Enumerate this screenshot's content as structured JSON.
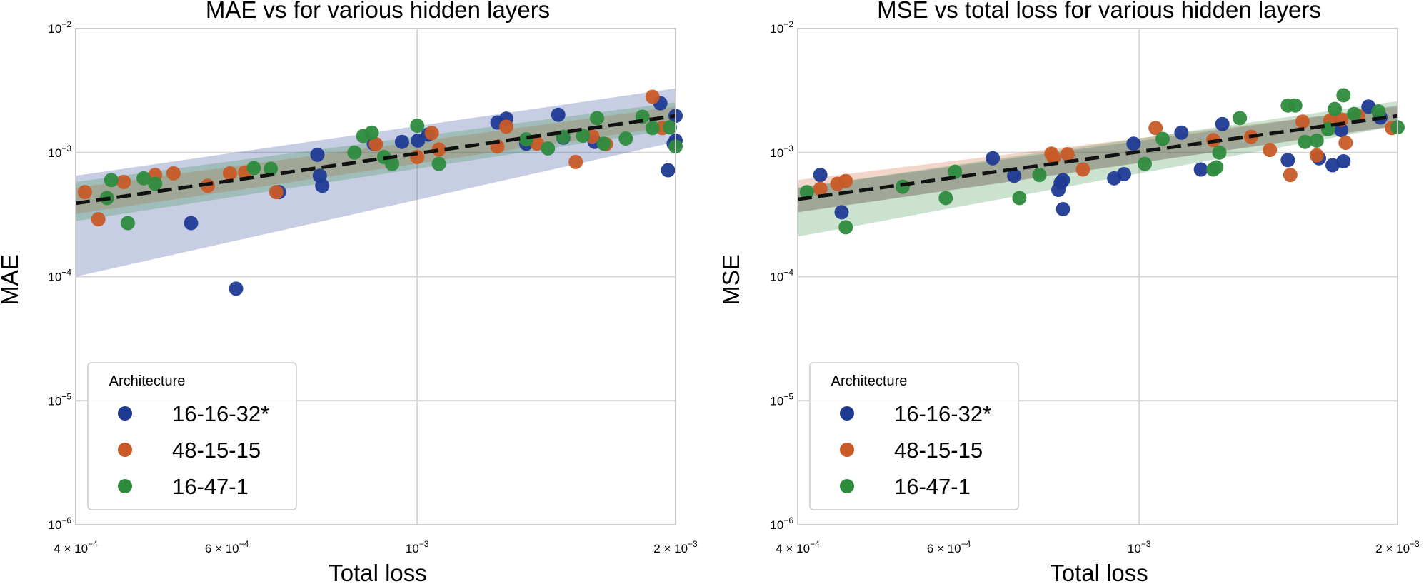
{
  "colors": {
    "16-16-32*": "#1f3a93",
    "48-15-15": "#c85a27",
    "16-47-1": "#2e8b3e",
    "fit_line": "#111111",
    "grid": "#d4d4d4",
    "frame": "#cccccc"
  },
  "chart_data": [
    {
      "type": "scatter",
      "title": "MAE vs for various hidden layers",
      "xlabel": "Total loss",
      "ylabel": "MAE",
      "xscale": "log",
      "yscale": "log",
      "xlim": [
        0.0004,
        0.002
      ],
      "ylim": [
        1e-06,
        0.01
      ],
      "xticks": [
        {
          "value": 0.0004,
          "mant": "4",
          "exp": "−4"
        },
        {
          "value": 0.0006,
          "mant": "6",
          "exp": "−4"
        },
        {
          "value": 0.001,
          "mant": "",
          "exp": "−3"
        },
        {
          "value": 0.002,
          "mant": "2",
          "exp": "−3"
        }
      ],
      "yticks": [
        {
          "value": 1e-06,
          "exp": "−6"
        },
        {
          "value": 1e-05,
          "exp": "−5"
        },
        {
          "value": 0.0001,
          "exp": "−4"
        },
        {
          "value": 0.001,
          "exp": "−3"
        },
        {
          "value": 0.01,
          "exp": "−2"
        }
      ],
      "legend": {
        "title": "Architecture",
        "location": "lower-left"
      },
      "fit": {
        "x": [
          0.0004,
          0.002
        ],
        "y": [
          0.00039,
          0.00198
        ]
      },
      "bands": [
        {
          "name": "16-16-32*",
          "lower": [
            0.0001,
            0.00122
          ],
          "upper": [
            0.00065,
            0.0033
          ]
        },
        {
          "name": "48-15-15",
          "lower": [
            0.00032,
            0.00165
          ],
          "upper": [
            0.00052,
            0.00235
          ]
        },
        {
          "name": "16-47-1",
          "lower": [
            0.00028,
            0.00155
          ],
          "upper": [
            0.00058,
            0.00255
          ]
        }
      ],
      "series": [
        {
          "name": "16-16-32*",
          "x": [
            0.000545,
            0.000615,
            0.00069,
            0.00077,
            0.000765,
            0.000775,
            0.00089,
            0.00096,
            0.001002,
            0.00103,
            0.00124,
            0.00127,
            0.00134,
            0.00146,
            0.00148,
            0.00161,
            0.00192,
            0.00196,
            0.002,
            0.002,
            0.00199
          ],
          "y": [
            0.00027,
            8e-05,
            0.00048,
            0.00065,
            0.00096,
            0.00054,
            0.00118,
            0.00122,
            0.00125,
            0.0014,
            0.00175,
            0.00188,
            0.00118,
            0.00202,
            0.00132,
            0.00122,
            0.0025,
            0.00072,
            0.00198,
            0.00125,
            0.00118
          ]
        },
        {
          "name": "48-15-15",
          "x": [
            0.00041,
            0.000425,
            0.000455,
            0.000495,
            0.00052,
            0.00057,
            0.000605,
            0.00063,
            0.000685,
            0.000895,
            0.001,
            0.00104,
            0.00106,
            0.00124,
            0.00127,
            0.00138,
            0.00153,
            0.0016,
            0.00166,
            0.00188,
            0.00193
          ],
          "y": [
            0.00048,
            0.00029,
            0.00058,
            0.00066,
            0.00068,
            0.00054,
            0.00068,
            0.00069,
            0.00048,
            0.00117,
            0.00092,
            0.00144,
            0.00106,
            0.00112,
            0.00162,
            0.00118,
            0.00084,
            0.00135,
            0.00117,
            0.00282,
            0.00158
          ]
        },
        {
          "name": "16-47-1",
          "x": [
            0.000435,
            0.00044,
            0.00046,
            0.00048,
            0.000495,
            0.000645,
            0.000675,
            0.000845,
            0.000865,
            0.000885,
            0.000915,
            0.000935,
            0.001,
            0.00106,
            0.00134,
            0.00142,
            0.00148,
            0.00156,
            0.00162,
            0.00165,
            0.00175,
            0.00183,
            0.00188,
            0.00197,
            0.002
          ],
          "y": [
            0.00043,
            0.0006,
            0.00027,
            0.00062,
            0.00056,
            0.00075,
            0.00074,
            0.001,
            0.00136,
            0.00145,
            0.00092,
            0.00081,
            0.00165,
            0.00081,
            0.00128,
            0.00108,
            0.00134,
            0.00137,
            0.0019,
            0.00118,
            0.0013,
            0.00195,
            0.00158,
            0.0016,
            0.00112
          ]
        }
      ]
    },
    {
      "type": "scatter",
      "title": "MSE vs total loss for various hidden layers",
      "xlabel": "Total loss",
      "ylabel": "MSE",
      "xscale": "log",
      "yscale": "log",
      "xlim": [
        0.0004,
        0.002
      ],
      "ylim": [
        1e-06,
        0.01
      ],
      "xticks": [
        {
          "value": 0.0004,
          "mant": "4",
          "exp": "−4"
        },
        {
          "value": 0.0006,
          "mant": "6",
          "exp": "−4"
        },
        {
          "value": 0.001,
          "mant": "",
          "exp": "−3"
        },
        {
          "value": 0.002,
          "mant": "2",
          "exp": "−3"
        }
      ],
      "yticks": [
        {
          "value": 1e-06,
          "exp": "−6"
        },
        {
          "value": 1e-05,
          "exp": "−5"
        },
        {
          "value": 0.0001,
          "exp": "−4"
        },
        {
          "value": 0.001,
          "exp": "−3"
        },
        {
          "value": 0.01,
          "exp": "−2"
        }
      ],
      "legend": {
        "title": "Architecture",
        "location": "lower-left"
      },
      "fit": {
        "x": [
          0.0004,
          0.002
        ],
        "y": [
          0.00042,
          0.00198
        ]
      },
      "bands": [
        {
          "name": "16-16-32*",
          "lower": [
            0.00033,
            0.00165
          ],
          "upper": [
            0.00052,
            0.0024
          ]
        },
        {
          "name": "48-15-15",
          "lower": [
            0.00033,
            0.00165
          ],
          "upper": [
            0.0006,
            0.00235
          ]
        },
        {
          "name": "16-47-1",
          "lower": [
            0.00021,
            0.00165
          ],
          "upper": [
            0.00052,
            0.0026
          ]
        }
      ],
      "series": [
        {
          "name": "16-16-32*",
          "x": [
            0.000425,
            0.00045,
            0.000675,
            0.000715,
            0.000805,
            0.00081,
            0.000815,
            0.000815,
            0.000935,
            0.00096,
            0.000985,
            0.00112,
            0.00118,
            0.00125,
            0.00149,
            0.00162,
            0.00168,
            0.00172,
            0.00173,
            0.00185,
            0.00191
          ],
          "y": [
            0.00066,
            0.00033,
            0.0009,
            0.00065,
            0.0005,
            0.00057,
            0.0006,
            0.00035,
            0.00062,
            0.00067,
            0.00118,
            0.00145,
            0.00073,
            0.0017,
            0.00087,
            0.0009,
            0.00079,
            0.00152,
            0.00085,
            0.00235,
            0.00192
          ]
        },
        {
          "name": "48-15-15",
          "x": [
            0.000425,
            0.000445,
            0.000455,
            0.00079,
            0.000795,
            0.000825,
            0.00086,
            0.001045,
            0.00122,
            0.00135,
            0.00142,
            0.0015,
            0.00155,
            0.00161,
            0.00167,
            0.00172,
            0.00174,
            0.0018,
            0.00197
          ],
          "y": [
            0.00051,
            0.00056,
            0.00059,
            0.00098,
            0.00091,
            0.00097,
            0.00073,
            0.00158,
            0.00126,
            0.00134,
            0.00105,
            0.00066,
            0.00178,
            0.00095,
            0.00182,
            0.00185,
            0.0012,
            0.00198,
            0.00158
          ]
        },
        {
          "name": "16-47-1",
          "x": [
            0.00041,
            0.000455,
            0.00053,
            0.000595,
            0.00061,
            0.000725,
            0.000765,
            0.001015,
            0.001065,
            0.00122,
            0.00123,
            0.00124,
            0.00131,
            0.00149,
            0.00152,
            0.00156,
            0.00161,
            0.00166,
            0.00169,
            0.00173,
            0.00178,
            0.0019,
            0.002
          ],
          "y": [
            0.00048,
            0.00025,
            0.00053,
            0.00043,
            0.0007,
            0.00043,
            0.00066,
            0.00081,
            0.00129,
            0.00073,
            0.00076,
            0.001,
            0.0019,
            0.0024,
            0.0024,
            0.00122,
            0.00125,
            0.00155,
            0.00225,
            0.0029,
            0.00205,
            0.00215,
            0.0016
          ]
        }
      ]
    }
  ]
}
